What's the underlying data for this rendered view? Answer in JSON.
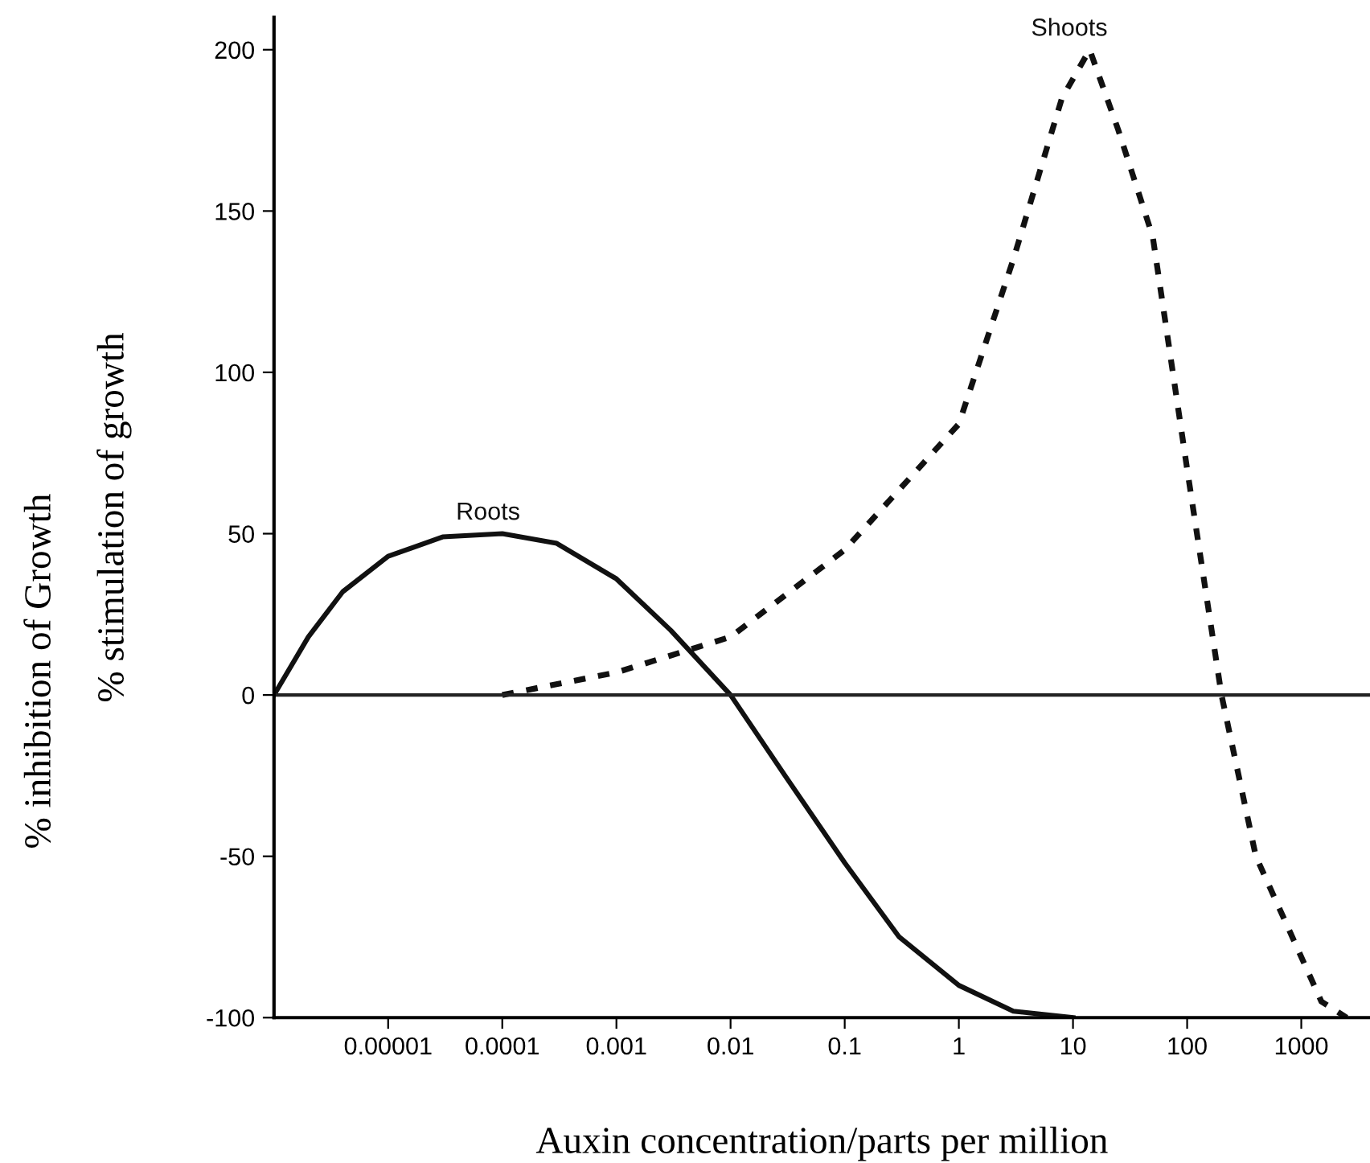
{
  "chart_data": {
    "type": "line",
    "xlabel": "Auxin concentration/parts per million",
    "ylabel": "% stimulation of growth",
    "annotations": [
      "% inhibition of Growth"
    ],
    "log": "x",
    "xlim": [
      1e-06,
      4000
    ],
    "xticks": [
      {
        "value": 1e-05,
        "label": "0.00001"
      },
      {
        "value": 0.0001,
        "label": "0.0001"
      },
      {
        "value": 0.001,
        "label": "0.001"
      },
      {
        "value": 0.01,
        "label": "0.01"
      },
      {
        "value": 0.1,
        "label": "0.1"
      },
      {
        "value": 1,
        "label": "1"
      },
      {
        "value": 10,
        "label": "10"
      },
      {
        "value": 100,
        "label": "100"
      },
      {
        "value": 1000,
        "label": "1000"
      }
    ],
    "ylim": [
      -100,
      210
    ],
    "yticks": [
      -100,
      -50,
      0,
      50,
      100,
      150,
      200
    ],
    "ref_lines": [
      {
        "axis": "y",
        "value": 0,
        "color": "#222222",
        "line_style": "solid"
      }
    ],
    "grid": false,
    "legend": false,
    "series": [
      {
        "name": "Roots",
        "color": "#111111",
        "line_style": "solid",
        "x": [
          1e-06,
          2e-06,
          4e-06,
          1e-05,
          3e-05,
          0.0001,
          0.0003,
          0.001,
          0.003,
          0.01,
          0.03,
          0.1,
          0.3,
          1,
          3,
          10
        ],
        "values": [
          0,
          18,
          32,
          43,
          49,
          50,
          47,
          36,
          20,
          0,
          -25,
          -52,
          -75,
          -90,
          -98,
          -100
        ]
      },
      {
        "name": "Shoots",
        "color": "#111111",
        "line_style": "dashed",
        "x": [
          0.0001,
          0.001,
          0.01,
          0.1,
          1,
          3,
          8,
          14,
          25,
          50,
          100,
          200,
          400,
          1500,
          2500
        ],
        "values": [
          0,
          7,
          18,
          45,
          84,
          135,
          185,
          200,
          175,
          142,
          70,
          0,
          -50,
          -95,
          -100
        ]
      }
    ]
  }
}
